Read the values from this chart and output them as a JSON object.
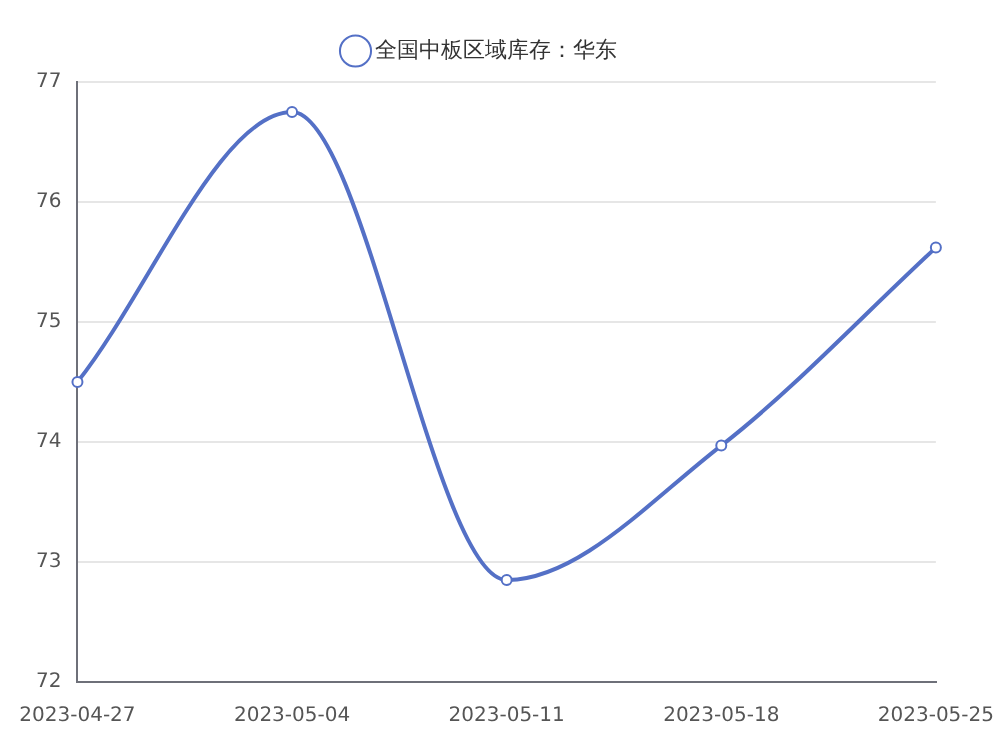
{
  "chart_data": {
    "type": "line",
    "categories": [
      "2023-04-27",
      "2023-05-04",
      "2023-05-11",
      "2023-05-18",
      "2023-05-25"
    ],
    "series": [
      {
        "name": "全国中板区域库存：华东",
        "color": "#5470c6",
        "values": [
          74.5,
          76.75,
          72.85,
          73.97,
          75.62
        ]
      }
    ],
    "ylim": [
      72,
      77
    ],
    "yticks": [
      72,
      73,
      74,
      75,
      76,
      77
    ],
    "grid": "y",
    "legend": "top",
    "marker": "circle",
    "line_style": "solid"
  }
}
